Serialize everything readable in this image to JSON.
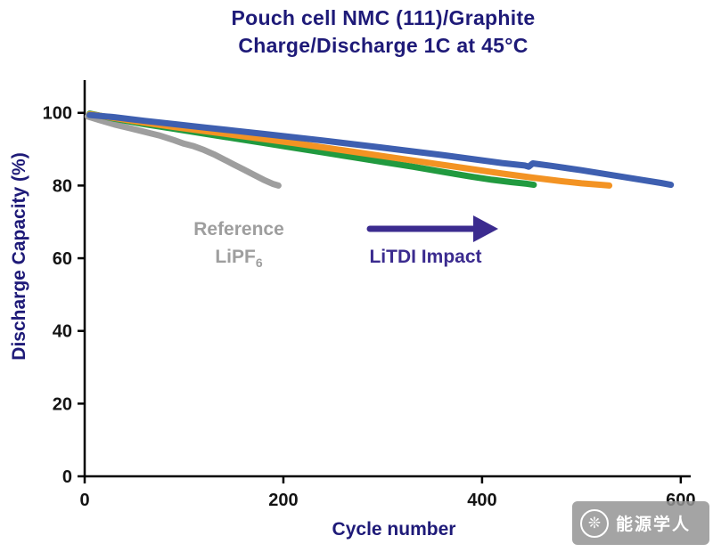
{
  "title": {
    "line1": "Pouch cell NMC (111)/Graphite",
    "line2": "Charge/Discharge 1C at 45°C"
  },
  "annotations": {
    "reference_line1": "Reference",
    "reference_formula": "LiPF",
    "reference_formula_sub": "6",
    "impact_label": "LiTDI Impact",
    "arrow_color": "#3b2b8f"
  },
  "watermark": {
    "text": "能源学人",
    "logo_icon": "❊"
  },
  "chart_data": {
    "type": "line",
    "title": "Pouch cell NMC (111)/Graphite Charge/Discharge 1C at 45°C",
    "xlabel": "Cycle number",
    "ylabel": "Discharge Capacity (%)",
    "xlim": [
      0,
      610
    ],
    "ylim": [
      0,
      109
    ],
    "xticks": [
      0,
      200,
      400,
      600
    ],
    "yticks": [
      0,
      20,
      40,
      60,
      80,
      100
    ],
    "grid": false,
    "legend": "none",
    "series": [
      {
        "name": "Reference LiPF6",
        "color": "#9e9e9e",
        "points": [
          [
            3,
            99
          ],
          [
            15,
            98
          ],
          [
            30,
            96.8
          ],
          [
            45,
            95.8
          ],
          [
            60,
            94.8
          ],
          [
            75,
            93.8
          ],
          [
            90,
            92.5
          ],
          [
            100,
            91.5
          ],
          [
            110,
            90.8
          ],
          [
            120,
            89.8
          ],
          [
            130,
            88.6
          ],
          [
            140,
            87.2
          ],
          [
            150,
            85.8
          ],
          [
            160,
            84.4
          ],
          [
            170,
            83.0
          ],
          [
            180,
            81.6
          ],
          [
            190,
            80.4
          ],
          [
            195,
            80
          ]
        ]
      },
      {
        "name": "LiTDI (green)",
        "color": "#219a3f",
        "points": [
          [
            5,
            99.8
          ],
          [
            30,
            98.4
          ],
          [
            60,
            96.9
          ],
          [
            90,
            95.6
          ],
          [
            120,
            94.3
          ],
          [
            150,
            93.0
          ],
          [
            180,
            91.7
          ],
          [
            210,
            90.4
          ],
          [
            240,
            89.1
          ],
          [
            270,
            87.8
          ],
          [
            300,
            86.5
          ],
          [
            330,
            85.2
          ],
          [
            360,
            83.8
          ],
          [
            390,
            82.4
          ],
          [
            410,
            81.6
          ],
          [
            430,
            80.9
          ],
          [
            445,
            80.5
          ],
          [
            452,
            80.2
          ]
        ]
      },
      {
        "name": "LiTDI (orange)",
        "color": "#f39323",
        "points": [
          [
            5,
            99.6
          ],
          [
            30,
            98.6
          ],
          [
            60,
            97.3
          ],
          [
            90,
            96.1
          ],
          [
            120,
            95.0
          ],
          [
            150,
            93.9
          ],
          [
            180,
            92.8
          ],
          [
            210,
            91.7
          ],
          [
            240,
            90.5
          ],
          [
            270,
            89.3
          ],
          [
            300,
            88.1
          ],
          [
            330,
            86.9
          ],
          [
            360,
            85.7
          ],
          [
            390,
            84.5
          ],
          [
            420,
            83.3
          ],
          [
            450,
            82.2
          ],
          [
            480,
            81.2
          ],
          [
            500,
            80.6
          ],
          [
            520,
            80.2
          ],
          [
            528,
            80
          ]
        ]
      },
      {
        "name": "LiTDI (blue)",
        "color": "#3e5fb0",
        "points": [
          [
            5,
            99.4
          ],
          [
            30,
            98.8
          ],
          [
            60,
            97.8
          ],
          [
            90,
            96.9
          ],
          [
            120,
            96.0
          ],
          [
            150,
            95.1
          ],
          [
            180,
            94.2
          ],
          [
            210,
            93.3
          ],
          [
            240,
            92.4
          ],
          [
            270,
            91.4
          ],
          [
            300,
            90.4
          ],
          [
            330,
            89.4
          ],
          [
            360,
            88.4
          ],
          [
            390,
            87.3
          ],
          [
            420,
            86.2
          ],
          [
            443,
            85.5
          ],
          [
            447,
            85.2
          ],
          [
            451,
            86.1
          ],
          [
            470,
            85.4
          ],
          [
            500,
            84.2
          ],
          [
            530,
            82.9
          ],
          [
            560,
            81.6
          ],
          [
            580,
            80.7
          ],
          [
            590,
            80.2
          ]
        ]
      }
    ]
  }
}
